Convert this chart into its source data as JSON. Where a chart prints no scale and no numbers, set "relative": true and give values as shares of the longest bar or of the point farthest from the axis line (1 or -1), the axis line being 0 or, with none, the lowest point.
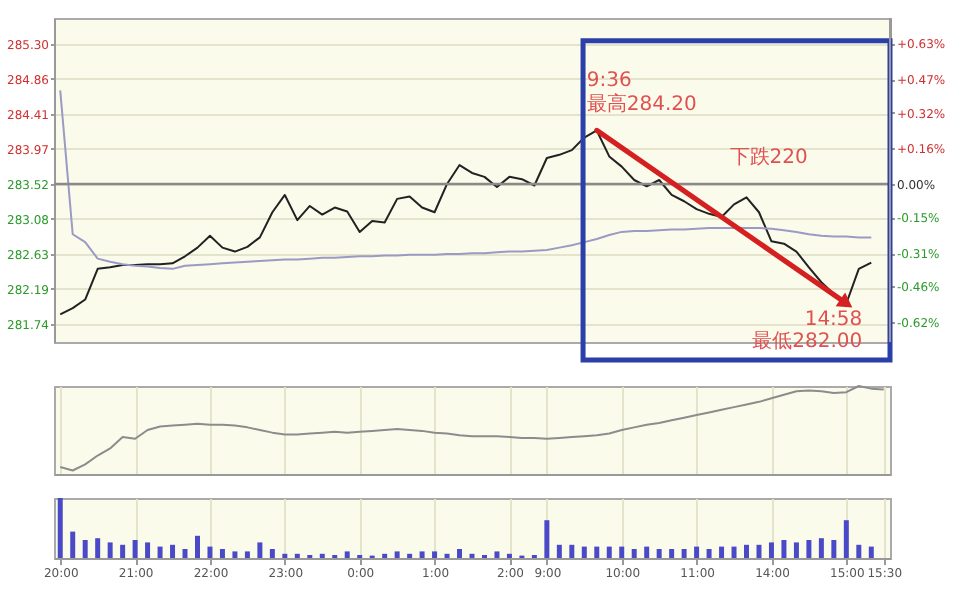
{
  "chart_data": [
    {
      "type": "line",
      "categories": [
        null,
        null,
        null,
        null,
        null,
        null,
        null,
        null,
        null,
        null,
        null,
        null,
        null,
        null,
        null,
        null,
        null,
        null,
        null,
        null,
        null,
        null,
        null,
        null,
        null,
        null,
        null,
        null,
        null,
        null,
        null,
        null,
        null,
        null,
        null,
        null,
        null,
        null,
        null,
        null,
        null,
        null,
        null,
        null,
        null,
        null,
        null,
        null,
        null,
        null,
        null,
        null,
        null,
        null,
        null,
        null,
        null,
        null,
        null,
        null,
        null,
        null,
        null,
        null,
        null,
        null,
        null
      ],
      "ylim": [
        281.51,
        285.63
      ],
      "yticks": [
        {
          "value": 285.3,
          "label": "285.30"
        },
        {
          "value": 284.86,
          "label": "284.86"
        },
        {
          "value": 284.41,
          "label": "284.41"
        },
        {
          "value": 283.97,
          "label": "283.97"
        },
        {
          "value": 283.52,
          "label": "283.52"
        },
        {
          "value": 283.08,
          "label": "283.08"
        },
        {
          "value": 282.63,
          "label": "282.63"
        },
        {
          "value": 282.19,
          "label": "282.19"
        },
        {
          "value": 281.74,
          "label": "281.74"
        }
      ],
      "y2lim": [
        -0.709,
        0.744
      ],
      "y2ticks": [
        {
          "value": 0.63,
          "label": "+0.63%"
        },
        {
          "value": 0.47,
          "label": "+0.47%"
        },
        {
          "value": 0.32,
          "label": "+0.32%"
        },
        {
          "value": 0.16,
          "label": "+0.16%"
        },
        {
          "value": 0,
          "label": "0.00%"
        },
        {
          "value": -0.15,
          "label": "-0.15%"
        },
        {
          "value": -0.31,
          "label": "-0.31%"
        },
        {
          "value": -0.46,
          "label": "-0.46%"
        },
        {
          "value": -0.62,
          "label": "-0.62%"
        }
      ],
      "tick_labels": "y",
      "grid": true,
      "series": [
        {
          "color": "#222222",
          "values": [
            281.86,
            281.94,
            282.05,
            282.44,
            282.46,
            282.49,
            282.49,
            282.5,
            282.5,
            282.51,
            282.6,
            282.71,
            282.86,
            282.71,
            282.66,
            282.72,
            282.84,
            283.16,
            283.38,
            283.06,
            283.24,
            283.13,
            283.22,
            283.17,
            282.91,
            283.05,
            283.03,
            283.33,
            283.36,
            283.22,
            283.16,
            283.52,
            283.76,
            283.66,
            283.61,
            283.48,
            283.61,
            283.58,
            283.5,
            283.85,
            283.89,
            283.95,
            284.11,
            284.2,
            283.87,
            283.74,
            283.57,
            283.49,
            283.57,
            283.38,
            283.3,
            283.2,
            283.14,
            283.1,
            283.26,
            283.35,
            283.16,
            282.79,
            282.76,
            282.66,
            282.46,
            282.27,
            282.12,
            282.0,
            282.44,
            282.52,
            null
          ]
        },
        {
          "color": "#9a9ac4",
          "values": [
            284.71,
            282.88,
            282.78,
            282.57,
            282.53,
            282.5,
            282.48,
            282.47,
            282.45,
            282.44,
            282.48,
            282.49,
            282.5,
            282.51,
            282.52,
            282.53,
            282.54,
            282.55,
            282.56,
            282.56,
            282.57,
            282.58,
            282.58,
            282.59,
            282.6,
            282.6,
            282.61,
            282.61,
            282.62,
            282.62,
            282.62,
            282.63,
            282.63,
            282.64,
            282.64,
            282.65,
            282.66,
            282.66,
            282.67,
            282.68,
            282.71,
            282.74,
            282.78,
            282.82,
            282.87,
            282.91,
            282.92,
            282.92,
            282.93,
            282.94,
            282.94,
            282.95,
            282.96,
            282.96,
            282.96,
            282.96,
            282.96,
            282.95,
            282.93,
            282.91,
            282.88,
            282.86,
            282.85,
            282.85,
            282.84,
            282.84,
            null
          ]
        }
      ],
      "ref_lines": [
        {
          "axis": "y",
          "value": 283.52,
          "color": "#8a8a8a"
        }
      ],
      "annotations": [
        "9:36",
        "最高284.20",
        "下跌220",
        "14:58",
        "最低282.00"
      ]
    },
    {
      "type": "line",
      "relative": true,
      "categories": [
        null,
        null,
        null,
        null,
        null,
        null,
        null,
        null,
        null,
        null,
        null,
        null,
        null,
        null,
        null,
        null,
        null,
        null,
        null,
        null,
        null,
        null,
        null,
        null,
        null,
        null,
        null,
        null,
        null,
        null,
        null,
        null,
        null,
        null,
        null,
        null,
        null,
        null,
        null,
        null,
        null,
        null,
        null,
        null,
        null,
        null,
        null,
        null,
        null,
        null,
        null,
        null,
        null,
        null,
        null,
        null,
        null,
        null,
        null,
        null,
        null,
        null,
        null,
        null,
        null,
        null,
        null
      ],
      "tick_labels": false,
      "grid": "x",
      "series": [
        {
          "color": "#8c8c8c",
          "values": [
            0.08,
            0.04,
            0.11,
            0.21,
            0.29,
            0.42,
            0.4,
            0.5,
            0.54,
            0.55,
            0.56,
            0.57,
            0.56,
            0.56,
            0.55,
            0.53,
            0.5,
            0.47,
            0.45,
            0.45,
            0.46,
            0.47,
            0.48,
            0.47,
            0.48,
            0.49,
            0.5,
            0.51,
            0.5,
            0.49,
            0.47,
            0.46,
            0.44,
            0.43,
            0.43,
            0.43,
            0.42,
            0.41,
            0.41,
            0.4,
            0.41,
            0.42,
            0.43,
            0.44,
            0.46,
            0.5,
            0.53,
            0.56,
            0.58,
            0.61,
            0.64,
            0.67,
            0.7,
            0.73,
            0.76,
            0.79,
            0.82,
            0.86,
            0.9,
            0.94,
            0.95,
            0.94,
            0.92,
            0.93,
            1,
            0.97,
            0.96
          ]
        }
      ]
    },
    {
      "type": "bar",
      "relative": true,
      "categories": [
        "20:00",
        null,
        null,
        null,
        null,
        null,
        "21:00",
        null,
        null,
        null,
        null,
        null,
        "22:00",
        null,
        null,
        null,
        null,
        null,
        "23:00",
        null,
        null,
        null,
        null,
        null,
        "0:00",
        null,
        null,
        null,
        null,
        null,
        "1:00",
        null,
        null,
        null,
        null,
        null,
        "2:00",
        null,
        null,
        "9:00",
        null,
        null,
        null,
        null,
        null,
        "10:00",
        null,
        null,
        null,
        null,
        null,
        "11:00",
        null,
        null,
        null,
        null,
        null,
        "14:00",
        null,
        null,
        null,
        null,
        null,
        "15:00",
        null,
        null,
        "15:30"
      ],
      "tick_labels": "x",
      "grid": "x",
      "color": "#4a4ac8",
      "values": [
        1,
        0.44,
        0.3,
        0.33,
        0.26,
        0.22,
        0.3,
        0.26,
        0.19,
        0.22,
        0.15,
        0.37,
        0.19,
        0.15,
        0.11,
        0.11,
        0.26,
        0.15,
        0.07,
        0.07,
        0.05,
        0.07,
        0.05,
        0.11,
        0.05,
        0.04,
        0.07,
        0.11,
        0.07,
        0.11,
        0.11,
        0.07,
        0.15,
        0.07,
        0.05,
        0.11,
        0.07,
        0.04,
        0.05,
        0.63,
        0.22,
        0.22,
        0.19,
        0.19,
        0.19,
        0.19,
        0.15,
        0.19,
        0.15,
        0.15,
        0.15,
        0.19,
        0.15,
        0.19,
        0.19,
        0.22,
        0.22,
        0.26,
        0.3,
        0.26,
        0.3,
        0.33,
        0.3,
        0.63,
        0.22,
        0.19,
        null
      ]
    }
  ]
}
